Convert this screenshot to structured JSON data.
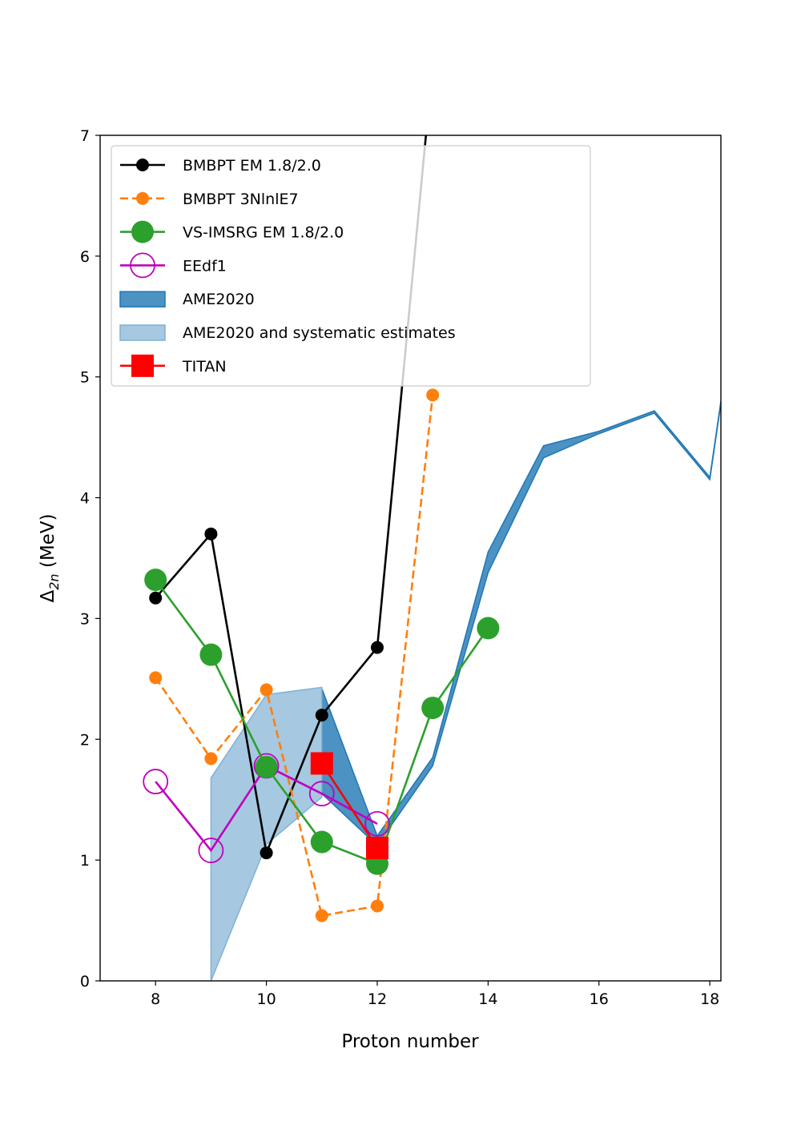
{
  "chart_data": {
    "type": "line",
    "xlabel": "Proton number",
    "ylabel": "Δ2n (MeV)",
    "ylabel_main": "Δ",
    "ylabel_sub": "2n",
    "ylabel_unit": " (MeV)",
    "xlim": [
      7,
      18.2
    ],
    "ylim": [
      0,
      7
    ],
    "xticks": [
      8,
      10,
      12,
      14,
      16,
      18
    ],
    "yticks": [
      0,
      1,
      2,
      3,
      4,
      5,
      6,
      7
    ],
    "grid": false,
    "legend_position": "top-left",
    "series": [
      {
        "name": "BMBPT EM 1.8/2.0",
        "style": "line-small-marker",
        "color": "#000000",
        "x": [
          8,
          9,
          10,
          11,
          12,
          13.5
        ],
        "y": [
          3.17,
          3.7,
          1.06,
          2.2,
          2.76,
          10.0
        ]
      },
      {
        "name": "BMBPT 3NlnlE7",
        "style": "dashed-small-marker",
        "color": "#ff7f0e",
        "x": [
          8,
          9,
          10,
          11,
          12,
          13
        ],
        "y": [
          2.51,
          1.84,
          2.41,
          0.54,
          0.62,
          4.85
        ]
      },
      {
        "name": "VS-IMSRG EM 1.8/2.0",
        "style": "line-large-marker",
        "color": "#2ca02c",
        "x": [
          8,
          9,
          10,
          11,
          12,
          13,
          14
        ],
        "y": [
          3.32,
          2.7,
          1.77,
          1.15,
          0.97,
          2.26,
          2.92
        ]
      },
      {
        "name": "EEdf1",
        "style": "line-open-marker",
        "color": "#bf00bf",
        "x": [
          8,
          9,
          10,
          11,
          12
        ],
        "y": [
          1.65,
          1.08,
          1.78,
          1.55,
          1.3
        ]
      },
      {
        "name": "AME2020",
        "style": "band-dark",
        "color": "#1f77b4",
        "x": [
          11,
          12,
          13,
          14,
          15,
          16,
          17,
          18,
          18.2
        ],
        "upper": [
          2.42,
          1.2,
          1.85,
          3.55,
          4.43,
          4.55,
          4.72,
          4.17,
          4.8
        ],
        "lower": [
          1.55,
          1.12,
          1.78,
          3.38,
          4.33,
          4.53,
          4.7,
          4.15,
          4.78
        ]
      },
      {
        "name": "AME2020 and systematic estimates",
        "style": "band-light",
        "color": "#a6c8e0",
        "x": [
          9,
          10,
          11
        ],
        "upper": [
          1.68,
          2.37,
          2.43
        ],
        "lower": [
          0.0,
          1.13,
          1.52
        ]
      },
      {
        "name": "TITAN",
        "style": "line-square-marker",
        "color": "#ff0000",
        "x": [
          11,
          12
        ],
        "y": [
          1.8,
          1.1
        ]
      }
    ]
  }
}
